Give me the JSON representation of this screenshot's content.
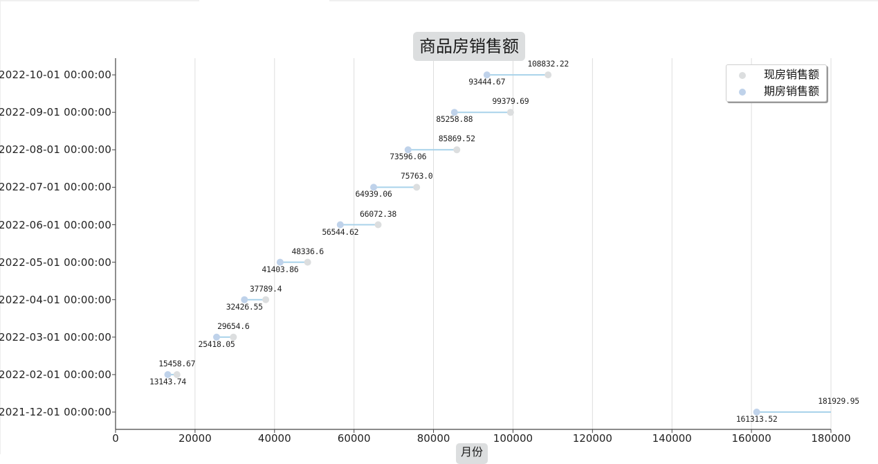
{
  "chart_data": {
    "type": "dumbbell",
    "title": "商品房销售额",
    "xlabel": "月份",
    "ylabel": "",
    "xlim": [
      0,
      180000
    ],
    "x_ticks": [
      "0",
      "20000",
      "40000",
      "60000",
      "80000",
      "100000",
      "120000",
      "140000",
      "160000",
      "180000"
    ],
    "grid": "vertical",
    "legend_position": "upper right",
    "categories": [
      "2021-12-01 00:00:00",
      "2022-02-01 00:00:00",
      "2022-03-01 00:00:00",
      "2022-04-01 00:00:00",
      "2022-05-01 00:00:00",
      "2022-06-01 00:00:00",
      "2022-07-01 00:00:00",
      "2022-08-01 00:00:00",
      "2022-09-01 00:00:00",
      "2022-10-01 00:00:00"
    ],
    "series": [
      {
        "name": "现房销售额",
        "color": "#dcdedf",
        "values": [
          181929.95,
          15458.67,
          29654.6,
          37789.4,
          48336.6,
          66072.38,
          75763.0,
          85869.52,
          99379.69,
          108832.22
        ],
        "labels": [
          "181929.95",
          "15458.67",
          "29654.6",
          "37789.4",
          "48336.6",
          "66072.38",
          "75763.0",
          "85869.52",
          "99379.69",
          "108832.22"
        ]
      },
      {
        "name": "期房销售额",
        "color": "#bfd2ea",
        "values": [
          161313.52,
          13143.74,
          25418.05,
          32426.55,
          41403.86,
          56544.62,
          64939.06,
          73596.06,
          85258.88,
          93444.67
        ],
        "labels": [
          "161313.52",
          "13143.74",
          "25418.05",
          "32426.55",
          "41403.86",
          "56544.62",
          "64939.06",
          "73596.06",
          "85258.88",
          "93444.67"
        ]
      }
    ],
    "connector_color": "#a8d2ea"
  },
  "legend": {
    "items": [
      {
        "label": "现房销售额",
        "color": "#dcdedf"
      },
      {
        "label": "期房销售额",
        "color": "#bfd2ea"
      }
    ]
  }
}
